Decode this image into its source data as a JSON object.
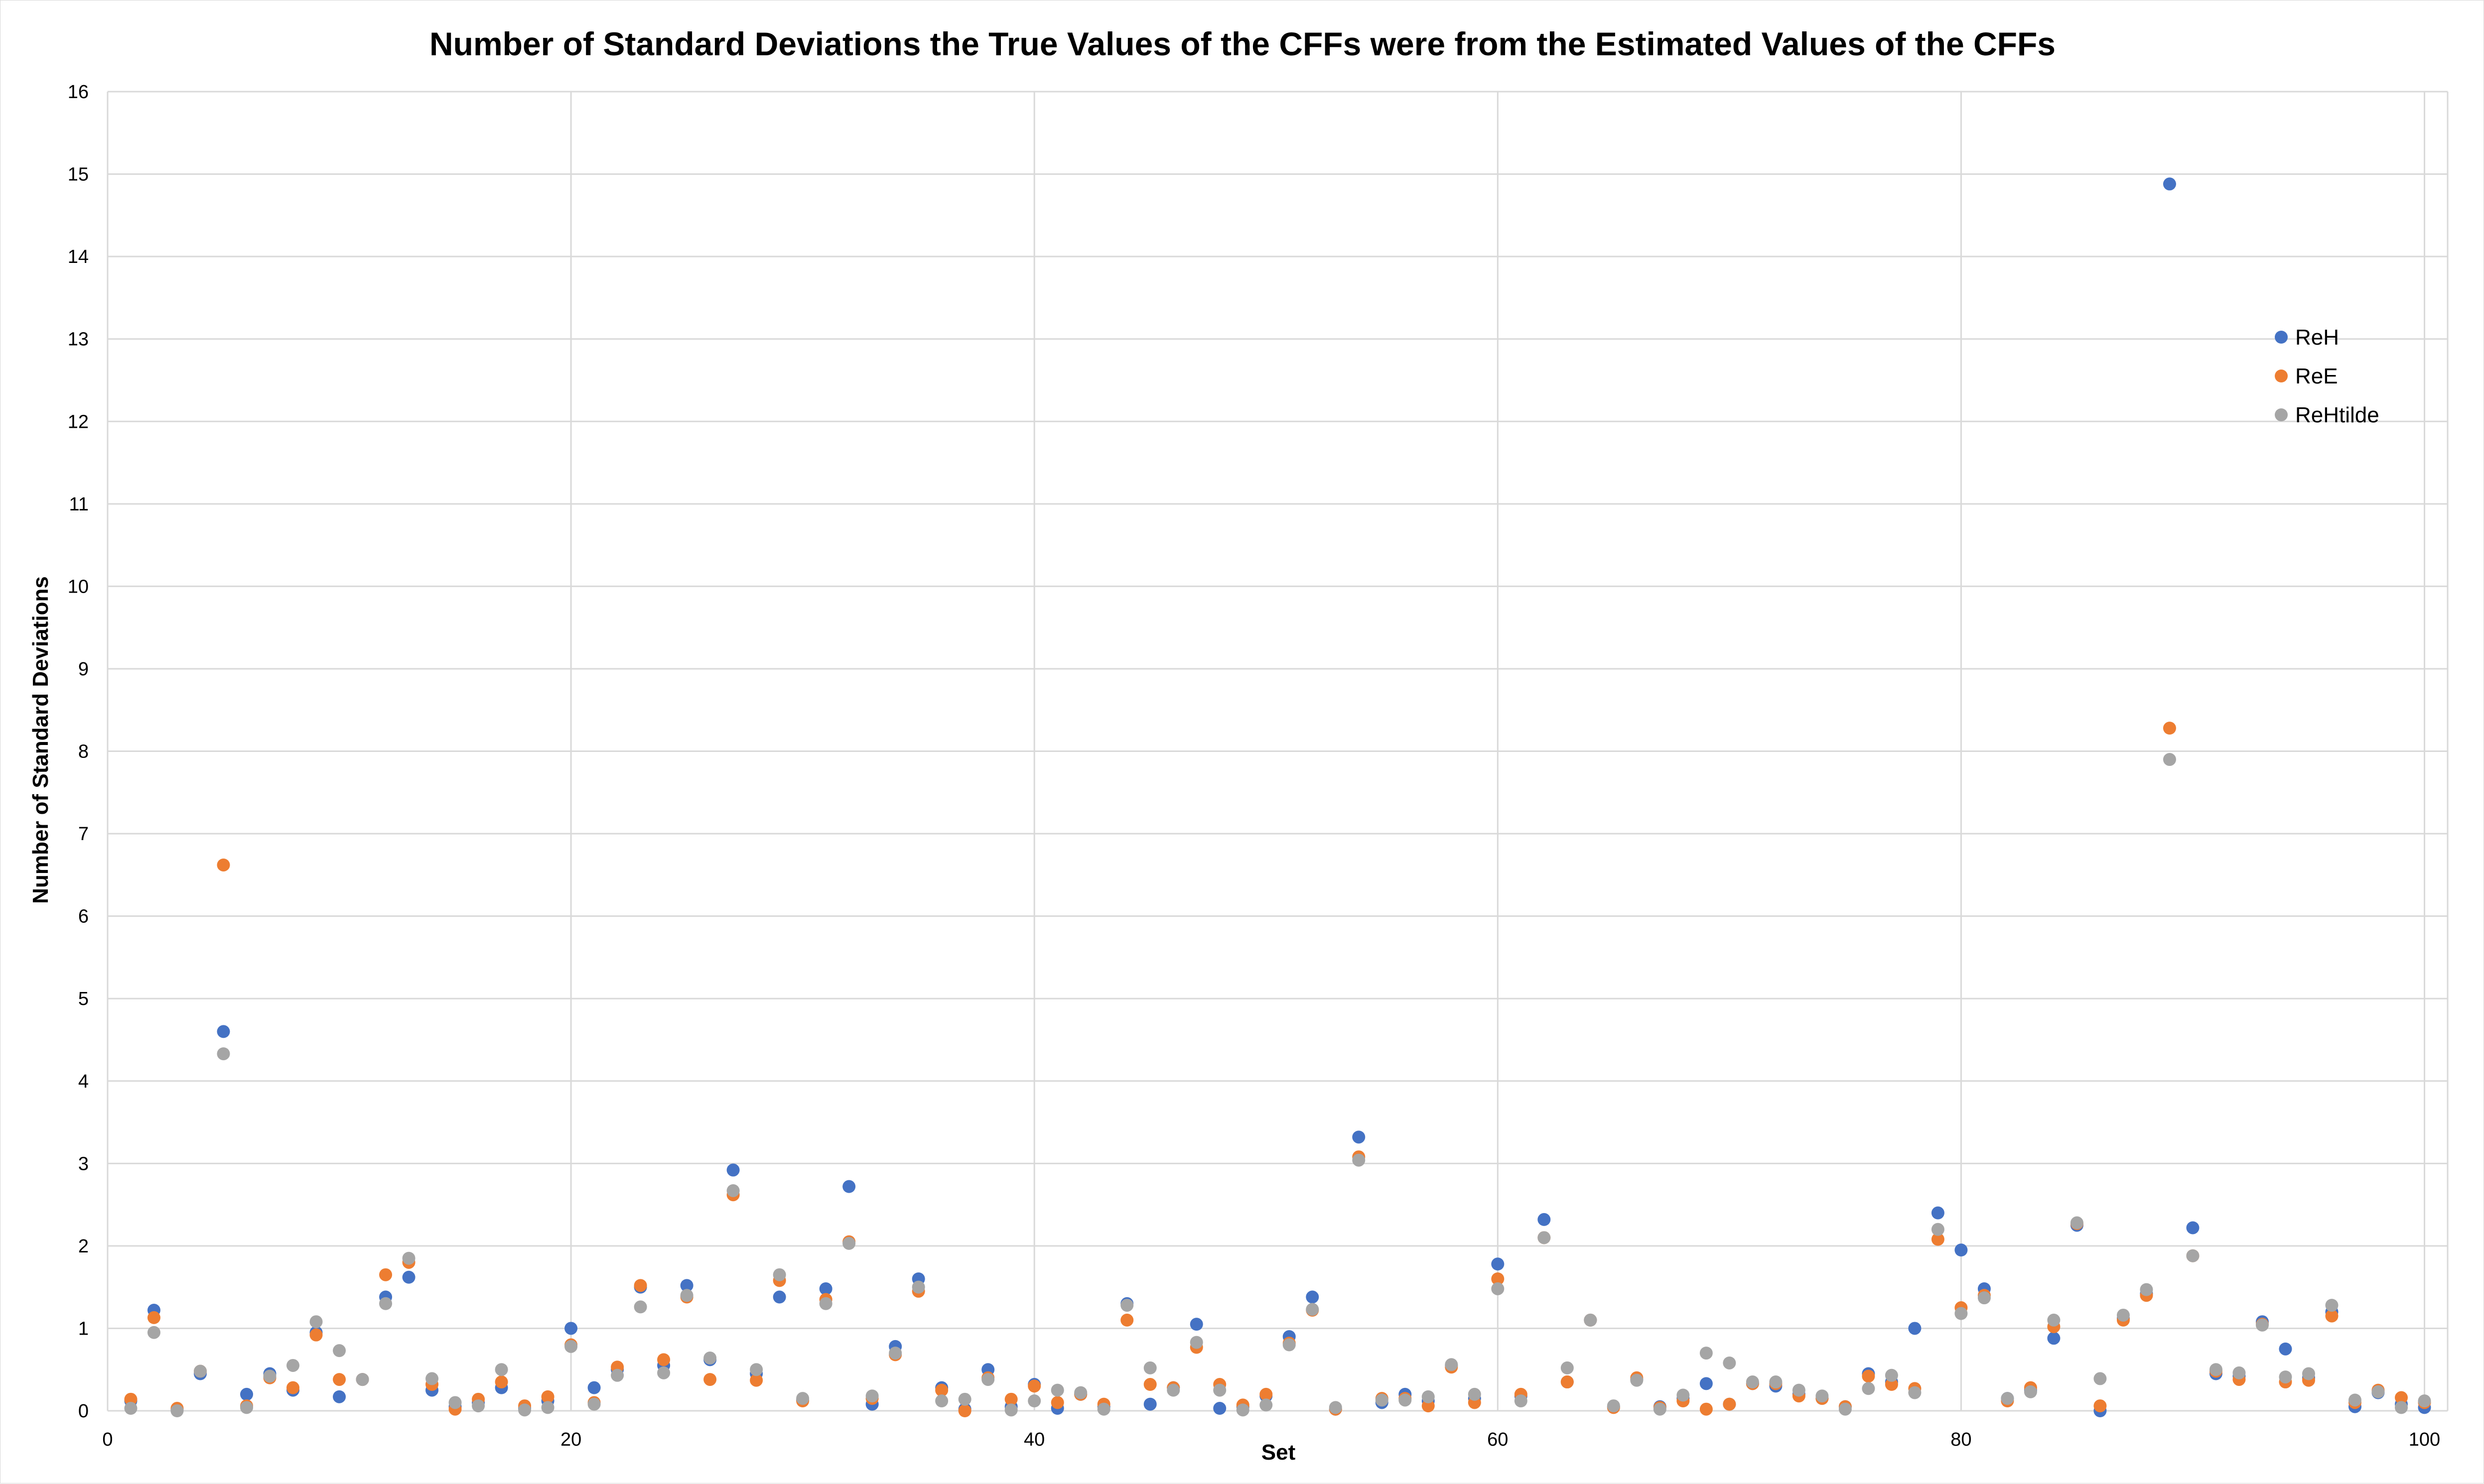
{
  "chart_data": {
    "type": "scatter",
    "title": "Number of Standard Deviations the True Values of the CFFs were from the Estimated Values of the CFFs",
    "xlabel": "Set",
    "ylabel": "Number of Standard Deviations",
    "xlim": [
      0,
      101
    ],
    "ylim": [
      0,
      16
    ],
    "x_ticks": [
      "0",
      "20",
      "40",
      "60",
      "80",
      "100"
    ],
    "y_ticks": [
      "0",
      "1",
      "2",
      "3",
      "4",
      "5",
      "6",
      "7",
      "8",
      "9",
      "10",
      "11",
      "12",
      "13",
      "14",
      "15",
      "16"
    ],
    "grid": true,
    "legend_position": "right",
    "series": [
      {
        "name": "ReH",
        "color": "#4472C4",
        "values": [
          0.12,
          1.22,
          0.02,
          0.45,
          4.6,
          0.2,
          0.45,
          0.25,
          0.95,
          0.17,
          0.38,
          1.38,
          1.62,
          0.25,
          0.05,
          0.1,
          0.28,
          0.03,
          0.12,
          1.0,
          0.28,
          0.5,
          1.5,
          0.55,
          1.52,
          0.62,
          2.92,
          0.45,
          1.38,
          0.13,
          1.48,
          2.72,
          0.08,
          0.78,
          1.6,
          0.28,
          0.02,
          0.5,
          0.05,
          0.32,
          0.03,
          0.2,
          0.05,
          1.3,
          0.08,
          0.28,
          1.05,
          0.03,
          0.05,
          0.18,
          0.9,
          1.38,
          0.02,
          3.32,
          0.1,
          0.2,
          0.12,
          0.55,
          0.15,
          1.78,
          0.18,
          2.32,
          0.35,
          1.1,
          0.05,
          0.38,
          0.05,
          0.15,
          0.33,
          0.08,
          0.33,
          0.3,
          0.2,
          0.15,
          0.05,
          0.45,
          0.35,
          1.0,
          2.4,
          1.95,
          1.48,
          0.15,
          0.25,
          0.88,
          2.25,
          0.0,
          1.12,
          1.42,
          14.88,
          2.22,
          0.45,
          0.42,
          1.08,
          0.75,
          0.4,
          1.2,
          0.05,
          0.22,
          0.08,
          0.04
        ],
        "y_values_count_note": null
      },
      {
        "name": "ReE",
        "color": "#ED7D31",
        "values": [
          0.14,
          1.13,
          0.03,
          0.48,
          6.62,
          0.06,
          0.4,
          0.28,
          0.92,
          0.38,
          0.38,
          1.65,
          1.8,
          0.32,
          0.02,
          0.14,
          0.35,
          0.06,
          0.17,
          0.8,
          0.1,
          0.53,
          1.52,
          0.62,
          1.38,
          0.38,
          2.62,
          0.37,
          1.58,
          0.12,
          1.35,
          2.05,
          0.15,
          0.68,
          1.45,
          0.25,
          0.0,
          0.4,
          0.14,
          0.3,
          0.1,
          0.2,
          0.08,
          1.1,
          0.32,
          0.28,
          0.77,
          0.32,
          0.07,
          0.2,
          0.82,
          1.22,
          0.02,
          3.08,
          0.15,
          0.15,
          0.06,
          0.53,
          0.1,
          1.6,
          0.2,
          2.1,
          0.35,
          1.1,
          0.04,
          0.4,
          0.04,
          0.12,
          0.02,
          0.08,
          0.33,
          0.33,
          0.18,
          0.15,
          0.05,
          0.42,
          0.32,
          0.27,
          2.08,
          1.25,
          1.4,
          0.12,
          0.28,
          1.02,
          2.27,
          0.06,
          1.1,
          1.4,
          8.28,
          1.88,
          0.48,
          0.38,
          1.05,
          0.35,
          0.37,
          1.15,
          0.1,
          0.25,
          0.16,
          0.1
        ]
      },
      {
        "name": "ReHtilde",
        "color": "#A5A5A5",
        "values": [
          0.03,
          0.95,
          0.0,
          0.48,
          4.33,
          0.04,
          0.42,
          0.55,
          1.08,
          0.73,
          0.38,
          1.3,
          1.85,
          0.39,
          0.1,
          0.06,
          0.5,
          0.01,
          0.04,
          0.78,
          0.08,
          0.43,
          1.26,
          0.46,
          1.4,
          0.64,
          2.67,
          0.5,
          1.65,
          0.15,
          1.3,
          2.03,
          0.18,
          0.7,
          1.5,
          0.12,
          0.14,
          0.38,
          0.01,
          0.12,
          0.25,
          0.22,
          0.02,
          1.28,
          0.52,
          0.25,
          0.83,
          0.25,
          0.01,
          0.07,
          0.8,
          1.23,
          0.04,
          3.04,
          0.13,
          0.13,
          0.17,
          0.56,
          0.2,
          1.48,
          0.12,
          2.1,
          0.52,
          1.1,
          0.06,
          0.37,
          0.02,
          0.19,
          0.7,
          0.58,
          0.35,
          0.35,
          0.25,
          0.18,
          0.02,
          0.27,
          0.43,
          0.22,
          2.2,
          1.18,
          1.37,
          0.15,
          0.23,
          1.1,
          2.28,
          0.39,
          1.16,
          1.47,
          7.9,
          1.88,
          0.5,
          0.46,
          1.04,
          0.41,
          0.45,
          1.28,
          0.13,
          0.23,
          0.04,
          0.12
        ]
      }
    ]
  }
}
